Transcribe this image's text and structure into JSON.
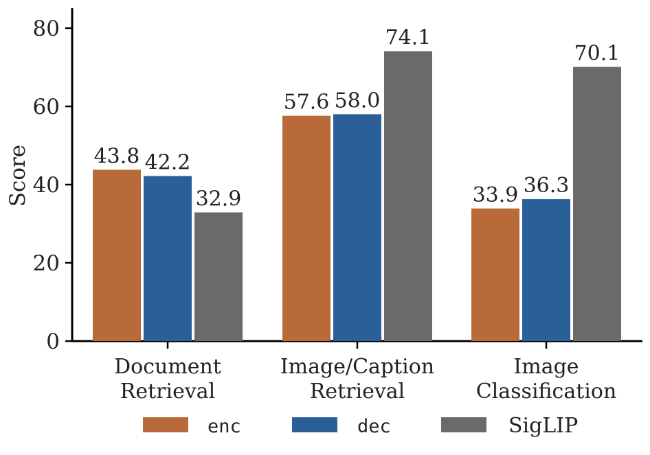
{
  "chart_data": {
    "type": "bar",
    "title": "",
    "xlabel": "",
    "ylabel": "Score",
    "ylim": [
      0,
      85
    ],
    "yticks": [
      0,
      20,
      40,
      60,
      80
    ],
    "yticks_labels": [
      "0",
      "20",
      "40",
      "60",
      "80"
    ],
    "grid": false,
    "legend_position": "bottom",
    "categories": [
      [
        "Document",
        "Retrieval"
      ],
      [
        "Image/Caption",
        "Retrieval"
      ],
      [
        "Image",
        "Classification"
      ]
    ],
    "series": [
      {
        "name": "enc",
        "color": "#b86b38",
        "values": [
          43.8,
          57.6,
          33.9
        ],
        "labels": [
          "43.8",
          "57.6",
          "33.9"
        ]
      },
      {
        "name": "dec",
        "color": "#2a6097",
        "values": [
          42.2,
          58.0,
          36.3
        ],
        "labels": [
          "42.2",
          "58.0",
          "36.3"
        ]
      },
      {
        "name": "SigLIP",
        "color": "#6a6a6a",
        "values": [
          32.9,
          74.1,
          70.1
        ],
        "labels": [
          "32.9",
          "74.1",
          "70.1"
        ]
      }
    ]
  }
}
